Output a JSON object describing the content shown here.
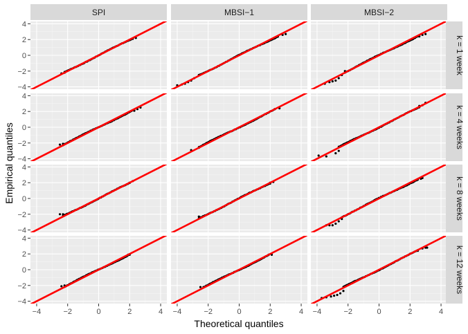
{
  "chart_data": {
    "type": "scatter",
    "subtype": "qq-plot facet grid",
    "xlabel": "Theoretical quantiles",
    "ylabel": "Empirical quantiles",
    "columns": [
      "SPI",
      "MBSI−1",
      "MBSI−2"
    ],
    "rows": [
      "k = 1 week",
      "k = 4 weeks",
      "k = 8 weeks",
      "k = 12 weeks"
    ],
    "xlim": [
      -4.4,
      4.4
    ],
    "ylim": [
      -4.3,
      4.3
    ],
    "xticks": [
      -4,
      -2,
      0,
      2,
      4
    ],
    "yticks": [
      -4,
      -2,
      0,
      2,
      4
    ],
    "tick_labels": {
      "x": [
        "−4",
        "−2",
        "0",
        "2",
        "4"
      ],
      "y": [
        "−4",
        "−2",
        "0",
        "2",
        "4"
      ]
    },
    "reference_line": {
      "slope": 1,
      "intercept": 0,
      "color": "#ff0000"
    },
    "colors": {
      "points": "#000000",
      "panel_bg": "#ebebeb",
      "strip_bg": "#d9d9d9",
      "grid": "#ffffff"
    },
    "panels": [
      {
        "column": "SPI",
        "row": "k = 1 week",
        "x_range": [
          -2.4,
          2.4
        ],
        "lower_tail": [
          [
            -2.4,
            -2.3
          ],
          [
            -2.2,
            -2.2
          ]
        ],
        "upper_tail": [
          [
            2.2,
            2.1
          ],
          [
            2.4,
            2.2
          ]
        ]
      },
      {
        "column": "MBSI−1",
        "row": "k = 1 week",
        "x_range": [
          -4.0,
          3.0
        ],
        "lower_tail": [
          [
            -4.0,
            -3.8
          ],
          [
            -3.7,
            -3.7
          ],
          [
            -3.5,
            -3.6
          ],
          [
            -3.3,
            -3.4
          ],
          [
            -3.1,
            -3.2
          ],
          [
            -2.9,
            -2.9
          ],
          [
            -2.6,
            -2.5
          ]
        ],
        "upper_tail": [
          [
            2.5,
            2.4
          ],
          [
            2.8,
            2.6
          ],
          [
            3.0,
            2.7
          ]
        ]
      },
      {
        "column": "MBSI−2",
        "row": "k = 1 week",
        "x_range": [
          -3.5,
          3.0
        ],
        "lower_tail": [
          [
            -3.5,
            -3.6
          ],
          [
            -3.2,
            -3.4
          ],
          [
            -3.0,
            -3.3
          ],
          [
            -2.8,
            -3.2
          ],
          [
            -2.6,
            -2.9
          ],
          [
            -2.4,
            -2.5
          ],
          [
            -2.2,
            -2.0
          ]
        ],
        "upper_tail": [
          [
            2.6,
            2.4
          ],
          [
            2.8,
            2.6
          ],
          [
            3.0,
            2.7
          ]
        ]
      },
      {
        "column": "SPI",
        "row": "k = 4 weeks",
        "x_range": [
          -2.5,
          2.7
        ],
        "lower_tail": [
          [
            -2.5,
            -2.2
          ],
          [
            -2.3,
            -2.1
          ]
        ],
        "upper_tail": [
          [
            2.3,
            2.1
          ],
          [
            2.5,
            2.3
          ],
          [
            2.7,
            2.5
          ]
        ]
      },
      {
        "column": "MBSI−1",
        "row": "k = 4 weeks",
        "x_range": [
          -3.1,
          2.6
        ],
        "lower_tail": [
          [
            -3.1,
            -2.9
          ],
          [
            -2.6,
            -2.6
          ]
        ],
        "upper_tail": [
          [
            2.3,
            2.3
          ],
          [
            2.6,
            2.4
          ]
        ]
      },
      {
        "column": "MBSI−2",
        "row": "k = 4 weeks",
        "x_range": [
          -3.9,
          3.0
        ],
        "lower_tail": [
          [
            -3.9,
            -3.6
          ],
          [
            -3.4,
            -3.7
          ],
          [
            -2.8,
            -3.3
          ],
          [
            -2.6,
            -3.0
          ]
        ],
        "upper_tail": [
          [
            2.6,
            2.7
          ],
          [
            2.8,
            2.8
          ],
          [
            3.0,
            3.1
          ]
        ]
      },
      {
        "column": "SPI",
        "row": "k = 8 weeks",
        "x_range": [
          -2.5,
          2.2
        ],
        "lower_tail": [
          [
            -2.5,
            -2.0
          ],
          [
            -2.3,
            -2.0
          ]
        ],
        "upper_tail": [
          [
            2.0,
            2.0
          ],
          [
            2.2,
            2.2
          ]
        ]
      },
      {
        "column": "MBSI−1",
        "row": "k = 8 weeks",
        "x_range": [
          -2.6,
          2.2
        ],
        "lower_tail": [
          [
            -2.6,
            -2.3
          ]
        ],
        "upper_tail": [
          [
            2.0,
            2.0
          ],
          [
            2.2,
            2.1
          ]
        ]
      },
      {
        "column": "MBSI−2",
        "row": "k = 8 weeks",
        "x_range": [
          -3.4,
          2.8
        ],
        "lower_tail": [
          [
            -3.4,
            -3.4
          ],
          [
            -3.2,
            -3.4
          ],
          [
            -3.0,
            -3.4
          ],
          [
            -2.8,
            -3.2
          ],
          [
            -2.6,
            -2.9
          ],
          [
            -2.4,
            -2.6
          ]
        ],
        "upper_tail": [
          [
            2.5,
            2.4
          ],
          [
            2.7,
            2.5
          ],
          [
            2.8,
            2.6
          ]
        ]
      },
      {
        "column": "SPI",
        "row": "k = 12 weeks",
        "x_range": [
          -2.4,
          2.0
        ],
        "lower_tail": [
          [
            -2.4,
            -2.1
          ],
          [
            -2.2,
            -2.0
          ]
        ],
        "upper_tail": [
          [
            1.9,
            1.9
          ],
          [
            2.0,
            1.9
          ]
        ]
      },
      {
        "column": "MBSI−1",
        "row": "k = 12 weeks",
        "x_range": [
          -2.5,
          2.1
        ],
        "lower_tail": [
          [
            -2.5,
            -2.2
          ],
          [
            -2.3,
            -2.2
          ]
        ],
        "upper_tail": [
          [
            1.9,
            1.9
          ],
          [
            2.1,
            1.9
          ]
        ]
      },
      {
        "column": "MBSI−2",
        "row": "k = 12 weeks",
        "x_range": [
          -3.7,
          3.1
        ],
        "lower_tail": [
          [
            -3.7,
            -3.6
          ],
          [
            -3.4,
            -3.5
          ],
          [
            -3.1,
            -3.4
          ],
          [
            -2.9,
            -3.3
          ],
          [
            -2.7,
            -3.2
          ],
          [
            -2.5,
            -3.0
          ],
          [
            -2.3,
            -2.7
          ]
        ],
        "upper_tail": [
          [
            2.5,
            2.4
          ],
          [
            2.8,
            2.7
          ],
          [
            3.0,
            2.8
          ],
          [
            3.1,
            2.8
          ]
        ]
      }
    ]
  }
}
